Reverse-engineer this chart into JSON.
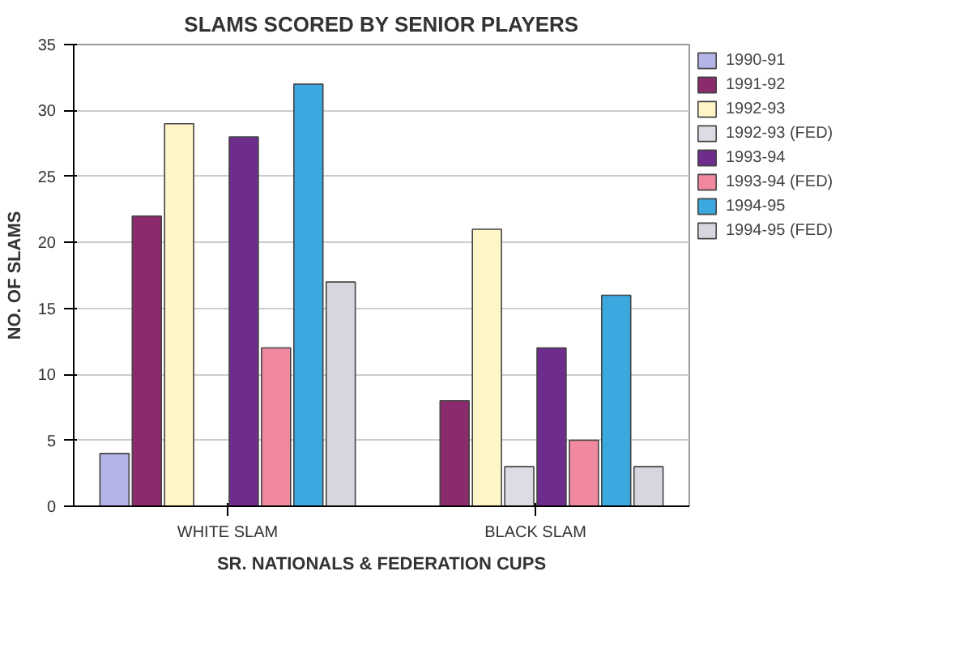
{
  "chart_data": {
    "type": "bar",
    "title": "SLAMS SCORED BY SENIOR PLAYERS",
    "xlabel": "SR. NATIONALS & FEDERATION CUPS",
    "ylabel": "NO. OF SLAMS",
    "categories": [
      "WHITE SLAM",
      "BLACK SLAM"
    ],
    "series": [
      {
        "name": "1990-91",
        "color": "#b4b4e6",
        "values": [
          4,
          null
        ]
      },
      {
        "name": "1991-92",
        "color": "#8c2a6e",
        "values": [
          22,
          8
        ]
      },
      {
        "name": "1992-93",
        "color": "#fff6c8",
        "values": [
          29,
          21
        ]
      },
      {
        "name": "1992-93 (FED)",
        "color": "#dcdce4",
        "values": [
          null,
          3
        ]
      },
      {
        "name": "1993-94",
        "color": "#6e2c8c",
        "values": [
          28,
          12
        ]
      },
      {
        "name": "1993-94 (FED)",
        "color": "#f0889e",
        "values": [
          12,
          5
        ]
      },
      {
        "name": "1994-95",
        "color": "#3ca8e0",
        "values": [
          32,
          16
        ]
      },
      {
        "name": "1994-95 (FED)",
        "color": "#d6d6de",
        "values": [
          17,
          3
        ]
      }
    ],
    "ylim": [
      0,
      35
    ],
    "yticks": [
      0,
      5,
      10,
      15,
      20,
      25,
      30,
      35
    ],
    "grid": "y",
    "legend": "right"
  }
}
